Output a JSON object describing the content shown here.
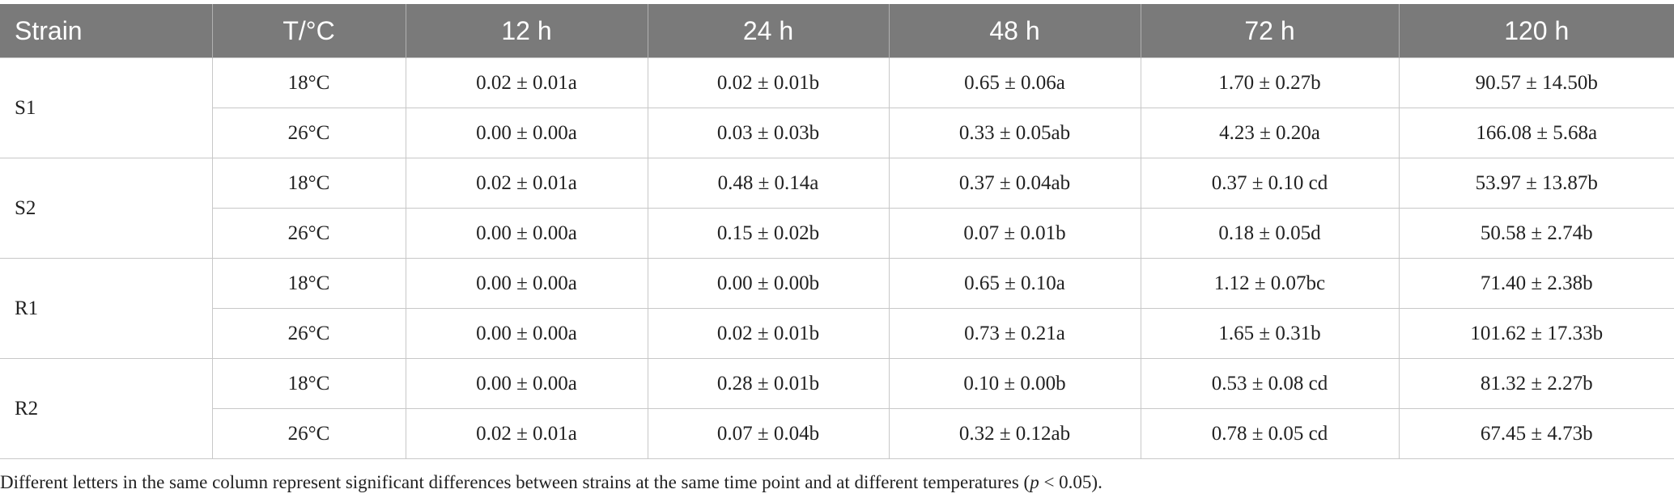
{
  "table": {
    "headers": [
      "Strain",
      "T/°C",
      "12 h",
      "24 h",
      "48 h",
      "72 h",
      "120 h"
    ],
    "groups": [
      {
        "strain": "S1",
        "rows": [
          [
            "18°C",
            "0.02 ± 0.01a",
            "0.02 ± 0.01b",
            "0.65 ± 0.06a",
            "1.70 ± 0.27b",
            "90.57 ± 14.50b"
          ],
          [
            "26°C",
            "0.00 ± 0.00a",
            "0.03 ± 0.03b",
            "0.33 ± 0.05ab",
            "4.23 ± 0.20a",
            "166.08 ± 5.68a"
          ]
        ]
      },
      {
        "strain": "S2",
        "rows": [
          [
            "18°C",
            "0.02 ± 0.01a",
            "0.48 ± 0.14a",
            "0.37 ± 0.04ab",
            "0.37 ± 0.10 cd",
            "53.97 ± 13.87b"
          ],
          [
            "26°C",
            "0.00 ± 0.00a",
            "0.15 ± 0.02b",
            "0.07 ± 0.01b",
            "0.18 ± 0.05d",
            "50.58 ± 2.74b"
          ]
        ]
      },
      {
        "strain": "R1",
        "rows": [
          [
            "18°C",
            "0.00 ± 0.00a",
            "0.00 ± 0.00b",
            "0.65 ± 0.10a",
            "1.12 ± 0.07bc",
            "71.40 ± 2.38b"
          ],
          [
            "26°C",
            "0.00 ± 0.00a",
            "0.02 ± 0.01b",
            "0.73 ± 0.21a",
            "1.65 ± 0.31b",
            "101.62 ± 17.33b"
          ]
        ]
      },
      {
        "strain": "R2",
        "rows": [
          [
            "18°C",
            "0.00 ± 0.00a",
            "0.28 ± 0.01b",
            "0.10 ± 0.00b",
            "0.53 ± 0.08 cd",
            "81.32 ± 2.27b"
          ],
          [
            "26°C",
            "0.02 ± 0.01a",
            "0.07 ± 0.04b",
            "0.32 ± 0.12ab",
            "0.78 ± 0.05 cd",
            "67.45 ± 4.73b"
          ]
        ]
      }
    ]
  },
  "footnote": {
    "before": "Different letters in the same column represent significant differences between strains at the same time point and at different temperatures (",
    "italic": "p",
    "after": " < 0.05)."
  }
}
